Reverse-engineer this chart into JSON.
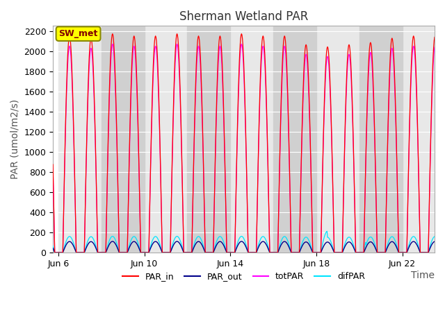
{
  "title": "Sherman Wetland PAR",
  "ylabel": "PAR (umol/m2/s)",
  "xlabel": "Time",
  "xlim_start_day": 5.75,
  "xlim_end_day": 23.5,
  "ylim": [
    0,
    2250
  ],
  "yticks": [
    0,
    200,
    400,
    600,
    800,
    1000,
    1200,
    1400,
    1600,
    1800,
    2000,
    2200
  ],
  "xtick_days": [
    6,
    10,
    14,
    18,
    22
  ],
  "xtick_labels": [
    "Jun 6",
    "Jun 10",
    "Jun 14",
    "Jun 18",
    "Jun 22"
  ],
  "fig_bg_color": "#ffffff",
  "plot_bg_color": "#ffffff",
  "band_light": "#e8e8e8",
  "band_dark": "#d0d0d0",
  "grid_color": "#ffffff",
  "color_PAR_in": "#ff0000",
  "color_PAR_out": "#00008b",
  "color_totPAR": "#ff00ff",
  "color_difPAR": "#00e5ff",
  "legend_label_SW_met": "SW_met",
  "legend_box_facecolor": "#ffff00",
  "legend_box_edgecolor": "#888800",
  "legend_box_text_color": "#800000",
  "peak_PAR_in": 2150,
  "peak_PAR_out": 110,
  "peak_totPAR": 2050,
  "peak_difPAR": 160,
  "title_fontsize": 12,
  "axis_fontsize": 10,
  "tick_fontsize": 9,
  "legend_fontsize": 9
}
